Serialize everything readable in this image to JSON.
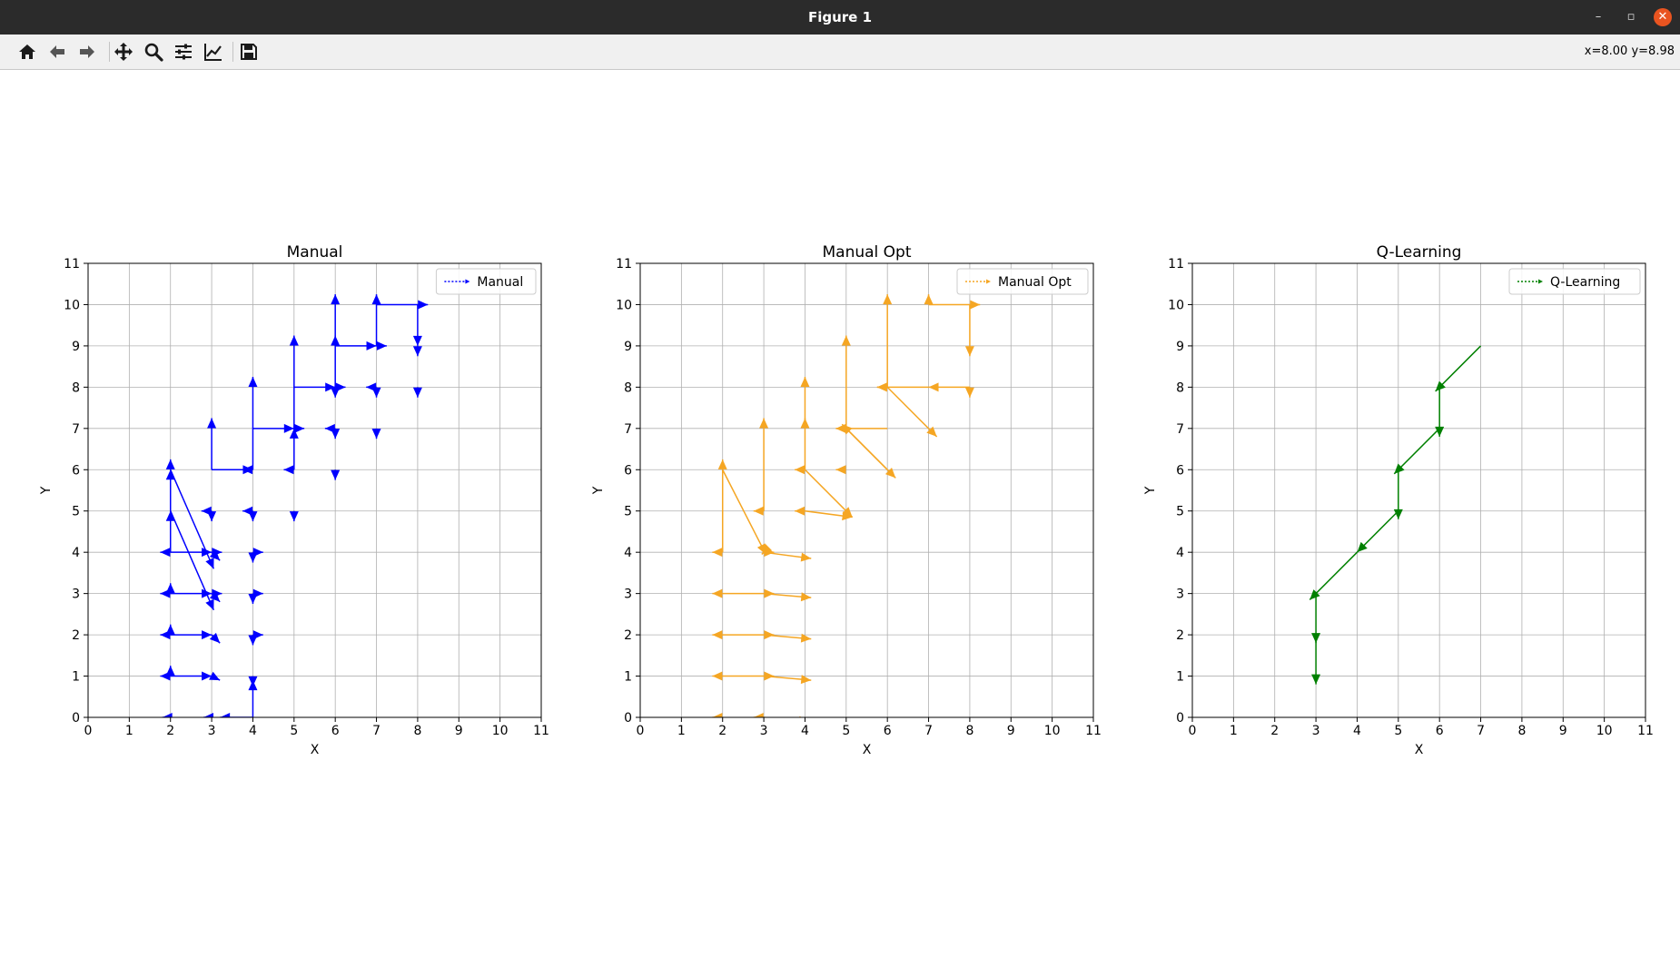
{
  "window": {
    "title": "Figure 1",
    "minimize_glyph": "–",
    "maximize_glyph": "▫",
    "close_glyph": "✕"
  },
  "toolbar": {
    "icons": [
      "home-icon",
      "back-arrow-icon",
      "forward-arrow-icon",
      "pan-move-icon",
      "zoom-magnifier-icon",
      "configure-subplots-icon",
      "edit-axes-icon",
      "save-floppy-icon"
    ],
    "coordinates": "x=8.00 y=8.98"
  },
  "chart_data": [
    {
      "type": "line",
      "title": "Manual",
      "xlabel": "X",
      "ylabel": "Y",
      "xlim": [
        0,
        11
      ],
      "ylim": [
        0,
        11
      ],
      "xticks": [
        "0",
        "1",
        "2",
        "3",
        "4",
        "5",
        "6",
        "7",
        "8",
        "9",
        "10",
        "11"
      ],
      "yticks": [
        "0",
        "1",
        "2",
        "3",
        "4",
        "5",
        "6",
        "7",
        "8",
        "9",
        "10",
        "11"
      ],
      "grid": true,
      "legend": "upper right",
      "legend_label": "Manual",
      "color": "#0000ff",
      "arrows": [
        [
          2,
          0,
          1.8,
          0
        ],
        [
          3,
          0,
          2.8,
          0
        ],
        [
          4,
          0,
          3.2,
          0
        ],
        [
          4,
          0,
          4,
          0.9
        ],
        [
          2,
          1,
          2,
          1.25
        ],
        [
          2,
          1,
          1.75,
          1
        ],
        [
          2,
          1,
          3,
          1
        ],
        [
          3,
          1,
          3.2,
          0.9
        ],
        [
          4,
          1,
          4,
          0.75
        ],
        [
          2,
          2,
          2,
          2.25
        ],
        [
          2,
          2,
          1.75,
          2
        ],
        [
          2,
          2,
          3,
          2
        ],
        [
          3,
          2,
          3.2,
          1.8
        ],
        [
          4,
          2,
          4,
          1.75
        ],
        [
          4,
          2,
          4.25,
          2
        ],
        [
          2,
          3,
          2,
          3.25
        ],
        [
          2,
          3,
          1.75,
          3
        ],
        [
          2,
          3,
          3,
          3
        ],
        [
          3,
          3,
          3.25,
          3
        ],
        [
          3,
          3,
          3.2,
          2.8
        ],
        [
          4,
          3,
          4,
          2.75
        ],
        [
          4,
          3,
          4.25,
          3
        ],
        [
          2,
          4,
          2,
          5
        ],
        [
          2,
          4,
          1.75,
          4
        ],
        [
          2,
          4,
          3,
          4
        ],
        [
          3,
          4,
          3.25,
          4
        ],
        [
          3,
          4,
          3.2,
          3.8
        ],
        [
          4,
          4,
          4,
          3.75
        ],
        [
          4,
          4,
          4.25,
          4
        ],
        [
          2,
          5,
          2,
          6
        ],
        [
          2,
          5,
          3.05,
          2.6
        ],
        [
          3,
          5,
          3,
          4.75
        ],
        [
          3,
          5,
          2.75,
          5
        ],
        [
          4,
          5,
          4,
          4.75
        ],
        [
          4,
          5,
          3.75,
          5
        ],
        [
          5,
          5,
          5,
          4.75
        ],
        [
          2,
          6,
          2,
          6.25
        ],
        [
          2,
          6,
          3.05,
          3.6
        ],
        [
          3,
          6,
          3,
          7.25
        ],
        [
          3,
          6,
          4,
          6
        ],
        [
          4,
          6,
          4,
          8.25
        ],
        [
          4,
          6,
          3.75,
          6
        ],
        [
          5,
          6,
          5,
          7
        ],
        [
          5,
          6,
          4.75,
          6
        ],
        [
          6,
          6,
          6,
          5.75
        ],
        [
          4,
          7,
          5,
          7
        ],
        [
          5,
          7,
          5,
          9.25
        ],
        [
          5,
          7,
          5.25,
          7
        ],
        [
          6,
          7,
          6,
          6.75
        ],
        [
          6,
          7,
          5.75,
          7
        ],
        [
          7,
          7,
          7,
          6.75
        ],
        [
          5,
          8,
          6,
          8
        ],
        [
          6,
          8,
          6,
          9.25
        ],
        [
          6,
          8,
          6,
          7.75
        ],
        [
          6,
          8,
          6.25,
          8
        ],
        [
          7,
          8,
          7,
          7.75
        ],
        [
          7,
          8,
          6.75,
          8
        ],
        [
          8,
          8,
          8,
          7.75
        ],
        [
          6,
          9,
          7,
          9
        ],
        [
          6,
          9,
          6,
          10.25
        ],
        [
          7,
          9,
          7.25,
          9
        ],
        [
          7,
          9,
          7,
          10.25
        ],
        [
          8,
          9,
          8,
          8.75
        ],
        [
          7,
          10,
          8.25,
          10
        ],
        [
          8,
          10,
          8,
          9
        ]
      ]
    },
    {
      "type": "line",
      "title": "Manual Opt",
      "xlabel": "X",
      "ylabel": "Y",
      "xlim": [
        0,
        11
      ],
      "ylim": [
        0,
        11
      ],
      "xticks": [
        "0",
        "1",
        "2",
        "3",
        "4",
        "5",
        "6",
        "7",
        "8",
        "9",
        "10",
        "11"
      ],
      "yticks": [
        "0",
        "1",
        "2",
        "3",
        "4",
        "5",
        "6",
        "7",
        "8",
        "9",
        "10",
        "11"
      ],
      "grid": true,
      "legend": "upper right",
      "legend_label": "Manual Opt",
      "color": "#f5a623",
      "arrows": [
        [
          2,
          0,
          1.75,
          0
        ],
        [
          3,
          0,
          2.75,
          0
        ],
        [
          3,
          0,
          4.1,
          -0.1
        ],
        [
          3,
          1,
          1.75,
          1
        ],
        [
          3,
          1,
          3.25,
          1
        ],
        [
          3,
          1,
          4.15,
          0.9
        ],
        [
          3,
          2,
          1.75,
          2
        ],
        [
          3,
          2,
          3.25,
          2
        ],
        [
          3,
          2,
          4.15,
          1.9
        ],
        [
          3,
          3,
          1.75,
          3
        ],
        [
          3,
          3,
          3.25,
          3
        ],
        [
          3,
          3,
          4.15,
          2.9
        ],
        [
          2,
          4,
          1.75,
          4
        ],
        [
          2,
          4,
          2,
          6.25
        ],
        [
          3,
          4,
          3.25,
          4
        ],
        [
          3,
          4,
          2.95,
          3.95
        ],
        [
          3,
          4,
          4.15,
          3.85
        ],
        [
          3,
          5,
          3,
          7.25
        ],
        [
          3,
          5,
          2.75,
          5
        ],
        [
          2,
          6,
          3.05,
          3.95
        ],
        [
          4,
          5,
          5.15,
          4.85
        ],
        [
          4,
          5,
          3.75,
          5
        ],
        [
          4,
          6,
          4,
          8.25
        ],
        [
          4,
          6,
          3.75,
          6
        ],
        [
          5,
          6,
          4.75,
          6
        ],
        [
          4,
          6,
          5.15,
          4.85
        ],
        [
          6,
          6,
          4.9,
          7.1
        ],
        [
          4,
          7,
          4,
          7.25
        ],
        [
          5,
          7,
          4.75,
          7
        ],
        [
          6,
          7,
          4.75,
          7
        ],
        [
          5,
          7,
          5,
          9.25
        ],
        [
          5,
          7,
          6.2,
          5.8
        ],
        [
          6,
          8,
          6,
          10.25
        ],
        [
          6,
          8,
          5.75,
          8
        ],
        [
          7,
          8,
          5.75,
          8
        ],
        [
          6,
          8,
          7.2,
          6.8
        ],
        [
          7,
          10,
          7,
          10.25
        ],
        [
          7,
          10,
          8.25,
          10
        ],
        [
          8,
          10,
          8,
          8.75
        ],
        [
          8,
          8,
          8,
          7.75
        ],
        [
          8,
          8,
          7,
          8
        ]
      ]
    },
    {
      "type": "line",
      "title": "Q-Learning",
      "xlabel": "X",
      "ylabel": "Y",
      "xlim": [
        0,
        11
      ],
      "ylim": [
        0,
        11
      ],
      "xticks": [
        "0",
        "1",
        "2",
        "3",
        "4",
        "5",
        "6",
        "7",
        "8",
        "9",
        "10",
        "11"
      ],
      "yticks": [
        "0",
        "1",
        "2",
        "3",
        "4",
        "5",
        "6",
        "7",
        "8",
        "9",
        "10",
        "11"
      ],
      "grid": true,
      "legend": "upper right",
      "legend_label": "Q-Learning",
      "color": "#008000",
      "arrows": [
        [
          7,
          9,
          5.9,
          7.9
        ],
        [
          6,
          8,
          6,
          6.8
        ],
        [
          6,
          7,
          4.9,
          5.9
        ],
        [
          5,
          6,
          5,
          4.8
        ],
        [
          5,
          5,
          4,
          4
        ],
        [
          4,
          4,
          2.85,
          2.85
        ],
        [
          3,
          3,
          3,
          1.8
        ],
        [
          3,
          2,
          3,
          0.8
        ]
      ]
    }
  ]
}
